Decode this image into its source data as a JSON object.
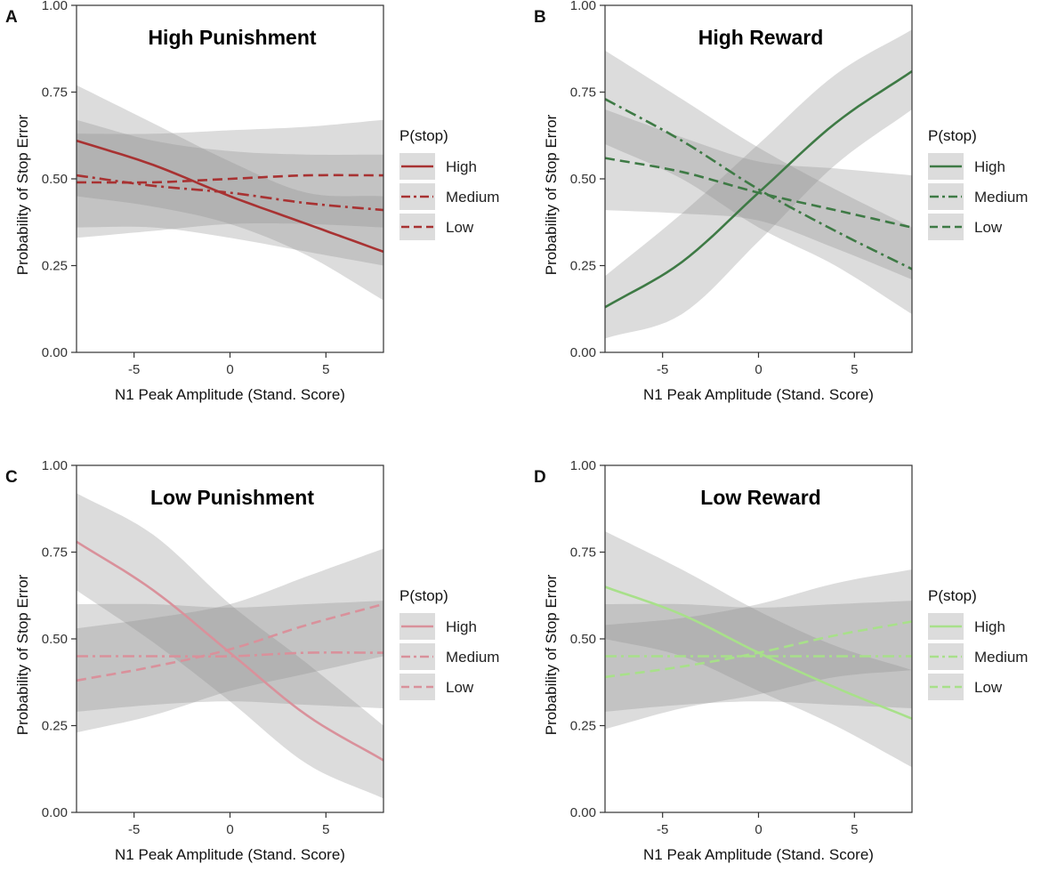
{
  "chart_data": [
    {
      "panel": "A",
      "type": "line",
      "title": "High Punishment",
      "xlabel": "N1 Peak Amplitude (Stand. Score)",
      "ylabel": "Probability of Stop Error",
      "xlim": [
        -8,
        8
      ],
      "ylim": [
        0,
        1
      ],
      "xticks": [
        "-5",
        "0",
        "5"
      ],
      "yticks": [
        "0.00",
        "0.25",
        "0.50",
        "0.75",
        "1.00"
      ],
      "legend_title": "P(stop)",
      "color": "#a83232",
      "x": [
        -8,
        -4,
        0,
        4,
        8
      ],
      "series": [
        {
          "name": "High",
          "dash": "solid",
          "values": [
            0.61,
            0.54,
            0.45,
            0.37,
            0.29
          ],
          "lower": [
            0.45,
            0.42,
            0.37,
            0.28,
            0.15
          ],
          "upper": [
            0.77,
            0.66,
            0.55,
            0.46,
            0.45
          ]
        },
        {
          "name": "Medium",
          "dash": "dashdot",
          "values": [
            0.51,
            0.48,
            0.46,
            0.43,
            0.41
          ],
          "lower": [
            0.36,
            0.36,
            0.33,
            0.29,
            0.25
          ],
          "upper": [
            0.67,
            0.61,
            0.58,
            0.57,
            0.57
          ]
        },
        {
          "name": "Low",
          "dash": "dashed",
          "values": [
            0.49,
            0.49,
            0.5,
            0.51,
            0.51
          ],
          "lower": [
            0.33,
            0.35,
            0.37,
            0.37,
            0.36
          ],
          "upper": [
            0.63,
            0.63,
            0.64,
            0.65,
            0.67
          ]
        }
      ]
    },
    {
      "panel": "B",
      "type": "line",
      "title": "High Reward",
      "xlabel": "N1 Peak Amplitude (Stand. Score)",
      "ylabel": "Probability of Stop Error",
      "xlim": [
        -8,
        8
      ],
      "ylim": [
        0,
        1
      ],
      "xticks": [
        "-5",
        "0",
        "5"
      ],
      "yticks": [
        "0.00",
        "0.25",
        "0.50",
        "0.75",
        "1.00"
      ],
      "legend_title": "P(stop)",
      "color": "#3e7a45",
      "x": [
        -8,
        -4,
        0,
        4,
        8
      ],
      "series": [
        {
          "name": "High",
          "dash": "solid",
          "values": [
            0.13,
            0.26,
            0.46,
            0.66,
            0.81
          ],
          "lower": [
            0.04,
            0.11,
            0.32,
            0.54,
            0.7
          ],
          "upper": [
            0.22,
            0.4,
            0.6,
            0.8,
            0.93
          ]
        },
        {
          "name": "Medium",
          "dash": "dashdot",
          "values": [
            0.73,
            0.61,
            0.47,
            0.35,
            0.24
          ],
          "lower": [
            0.6,
            0.5,
            0.36,
            0.25,
            0.11
          ],
          "upper": [
            0.87,
            0.73,
            0.59,
            0.47,
            0.36
          ]
        },
        {
          "name": "Low",
          "dash": "dashed",
          "values": [
            0.56,
            0.52,
            0.46,
            0.41,
            0.36
          ],
          "lower": [
            0.41,
            0.4,
            0.38,
            0.3,
            0.21
          ],
          "upper": [
            0.7,
            0.62,
            0.55,
            0.53,
            0.51
          ]
        }
      ]
    },
    {
      "panel": "C",
      "type": "line",
      "title": "Low Punishment",
      "xlabel": "N1 Peak Amplitude (Stand. Score)",
      "ylabel": "Probability of Stop Error",
      "xlim": [
        -8,
        8
      ],
      "ylim": [
        0,
        1
      ],
      "xticks": [
        "-5",
        "0",
        "5"
      ],
      "yticks": [
        "0.00",
        "0.25",
        "0.50",
        "0.75",
        "1.00"
      ],
      "legend_title": "P(stop)",
      "color": "#d9919b",
      "x": [
        -8,
        -4,
        0,
        4,
        8
      ],
      "series": [
        {
          "name": "High",
          "dash": "solid",
          "values": [
            0.78,
            0.64,
            0.46,
            0.28,
            0.15
          ],
          "lower": [
            0.64,
            0.49,
            0.32,
            0.14,
            0.04
          ],
          "upper": [
            0.92,
            0.8,
            0.6,
            0.43,
            0.25
          ]
        },
        {
          "name": "Medium",
          "dash": "dashdot",
          "values": [
            0.45,
            0.45,
            0.45,
            0.46,
            0.46
          ],
          "lower": [
            0.29,
            0.31,
            0.32,
            0.31,
            0.3
          ],
          "upper": [
            0.6,
            0.6,
            0.59,
            0.6,
            0.61
          ]
        },
        {
          "name": "Low",
          "dash": "dashed",
          "values": [
            0.38,
            0.42,
            0.47,
            0.54,
            0.6
          ],
          "lower": [
            0.23,
            0.28,
            0.35,
            0.4,
            0.45
          ],
          "upper": [
            0.53,
            0.56,
            0.6,
            0.68,
            0.76
          ]
        }
      ]
    },
    {
      "panel": "D",
      "type": "line",
      "title": "Low Reward",
      "xlabel": "N1 Peak Amplitude (Stand. Score)",
      "ylabel": "Probability of Stop Error",
      "xlim": [
        -8,
        8
      ],
      "ylim": [
        0,
        1
      ],
      "xticks": [
        "-5",
        "0",
        "5"
      ],
      "yticks": [
        "0.00",
        "0.25",
        "0.50",
        "0.75",
        "1.00"
      ],
      "legend_title": "P(stop)",
      "color": "#a8e08a",
      "x": [
        -8,
        -4,
        0,
        4,
        8
      ],
      "series": [
        {
          "name": "High",
          "dash": "solid",
          "values": [
            0.65,
            0.57,
            0.46,
            0.36,
            0.27
          ],
          "lower": [
            0.5,
            0.45,
            0.35,
            0.25,
            0.13
          ],
          "upper": [
            0.81,
            0.7,
            0.58,
            0.48,
            0.41
          ]
        },
        {
          "name": "Medium",
          "dash": "dashdot",
          "values": [
            0.45,
            0.45,
            0.45,
            0.45,
            0.45
          ],
          "lower": [
            0.29,
            0.31,
            0.32,
            0.31,
            0.3
          ],
          "upper": [
            0.6,
            0.6,
            0.59,
            0.6,
            0.61
          ]
        },
        {
          "name": "Low",
          "dash": "dashed",
          "values": [
            0.39,
            0.42,
            0.46,
            0.51,
            0.55
          ],
          "lower": [
            0.24,
            0.3,
            0.34,
            0.39,
            0.41
          ],
          "upper": [
            0.54,
            0.56,
            0.6,
            0.66,
            0.7
          ]
        }
      ]
    }
  ]
}
